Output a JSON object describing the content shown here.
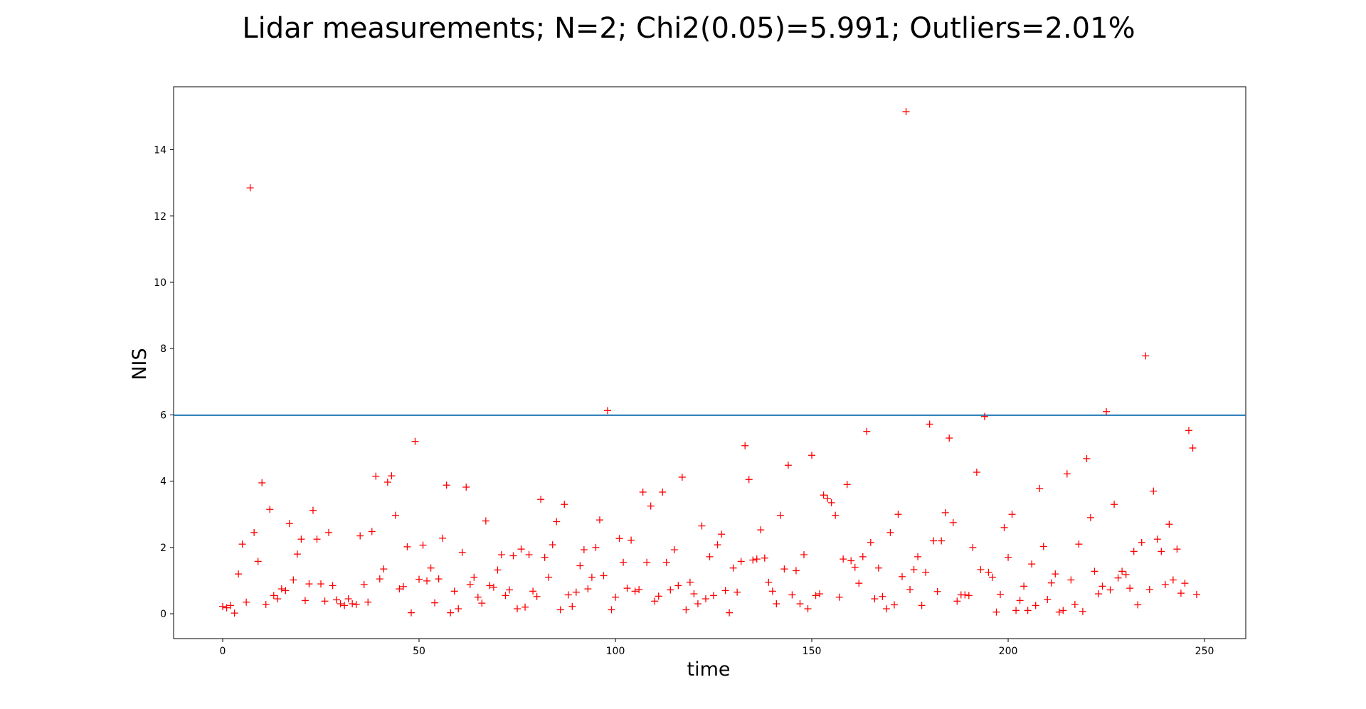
{
  "chart_data": {
    "type": "scatter",
    "title": "Lidar measurements; N=2; Chi2(0.05)=5.991; Outliers=2.01%",
    "xlabel": "time",
    "ylabel": "NIS",
    "xlim": [
      -12.5,
      260.5
    ],
    "ylim": [
      -0.75,
      15.9
    ],
    "xticks": [
      0,
      50,
      100,
      150,
      200,
      250
    ],
    "yticks": [
      0,
      2,
      4,
      6,
      8,
      10,
      12,
      14
    ],
    "grid": false,
    "legend": "none",
    "marker": "+",
    "marker_color": "#ff0000",
    "threshold": {
      "value": 5.991,
      "color": "#1f77b4"
    },
    "series": [
      {
        "x": [
          0,
          1,
          2,
          3,
          4,
          5,
          6,
          7,
          8,
          9,
          10,
          11,
          12,
          13,
          14,
          15,
          16,
          17,
          18,
          19,
          20,
          21,
          22,
          23,
          24,
          25,
          26,
          27,
          28,
          29,
          30,
          31,
          32,
          33,
          34,
          35,
          36,
          37,
          38,
          39,
          40,
          41,
          42,
          43,
          44,
          45,
          46,
          47,
          48,
          49,
          50,
          51,
          52,
          53,
          54,
          55,
          56,
          57,
          58,
          59,
          60,
          61,
          62,
          63,
          64,
          65,
          66,
          67,
          68,
          69,
          70,
          71,
          72,
          73,
          74,
          75,
          76,
          77,
          78,
          79,
          80,
          81,
          82,
          83,
          84,
          85,
          86,
          87,
          88,
          89,
          90,
          91,
          92,
          93,
          94,
          95,
          96,
          97,
          98,
          99,
          100,
          101,
          102,
          103,
          104,
          105,
          106,
          107,
          108,
          109,
          110,
          111,
          112,
          113,
          114,
          115,
          116,
          117,
          118,
          119,
          120,
          121,
          122,
          123,
          124,
          125,
          126,
          127,
          128,
          129,
          130,
          131,
          132,
          133,
          134,
          135,
          136,
          137,
          138,
          139,
          140,
          141,
          142,
          143,
          144,
          145,
          146,
          147,
          148,
          149,
          150,
          151,
          152,
          153,
          154,
          155,
          156,
          157,
          158,
          159,
          160,
          161,
          162,
          163,
          164,
          165,
          166,
          167,
          168,
          169,
          170,
          171,
          172,
          173,
          174,
          175,
          176,
          177,
          178,
          179,
          180,
          181,
          182,
          183,
          184,
          185,
          186,
          187,
          188,
          189,
          190,
          191,
          192,
          193,
          194,
          195,
          196,
          197,
          198,
          199,
          200,
          201,
          202,
          203,
          204,
          205,
          206,
          207,
          208,
          209,
          210,
          211,
          212,
          213,
          214,
          215,
          216,
          217,
          218,
          219,
          220,
          221,
          222,
          223,
          224,
          225,
          226,
          227,
          228,
          229,
          230,
          231,
          232,
          233,
          234,
          235,
          236,
          237,
          238,
          239,
          240,
          241,
          242,
          243,
          244,
          245,
          246,
          247,
          248
        ],
        "y": [
          0.22,
          0.18,
          0.25,
          0.02,
          1.2,
          2.1,
          0.35,
          12.85,
          2.45,
          1.58,
          3.95,
          0.28,
          3.15,
          0.55,
          0.45,
          0.75,
          0.7,
          2.72,
          1.02,
          1.8,
          2.25,
          0.4,
          0.9,
          3.12,
          2.25,
          0.9,
          0.38,
          2.45,
          0.85,
          0.42,
          0.3,
          0.25,
          0.45,
          0.3,
          0.28,
          2.35,
          0.88,
          0.35,
          2.48,
          4.15,
          1.05,
          1.35,
          3.97,
          4.16,
          2.97,
          0.75,
          0.82,
          2.02,
          0.03,
          5.2,
          1.04,
          2.07,
          0.99,
          1.38,
          0.33,
          1.05,
          2.28,
          3.88,
          0.03,
          0.68,
          0.15,
          1.85,
          3.82,
          0.88,
          1.1,
          0.5,
          0.32,
          2.8,
          0.85,
          0.8,
          1.32,
          1.78,
          0.55,
          0.72,
          1.75,
          0.15,
          1.95,
          0.2,
          1.78,
          0.68,
          0.52,
          3.45,
          1.7,
          1.1,
          2.08,
          2.78,
          0.12,
          3.3,
          0.57,
          0.22,
          0.65,
          1.45,
          1.93,
          0.75,
          1.1,
          2.0,
          2.83,
          1.15,
          6.13,
          0.12,
          0.5,
          2.27,
          1.55,
          0.77,
          2.22,
          0.68,
          0.73,
          3.67,
          1.55,
          3.25,
          0.38,
          0.53,
          3.67,
          1.55,
          0.72,
          1.93,
          0.85,
          4.12,
          0.12,
          0.95,
          0.6,
          0.3,
          2.65,
          0.45,
          1.72,
          0.55,
          2.08,
          2.4,
          0.7,
          0.03,
          1.38,
          0.65,
          1.58,
          5.07,
          4.05,
          1.62,
          1.65,
          2.53,
          1.68,
          0.95,
          0.68,
          0.3,
          2.97,
          1.35,
          4.48,
          0.57,
          1.3,
          0.3,
          1.78,
          0.15,
          4.78,
          0.55,
          0.6,
          3.58,
          3.48,
          3.35,
          2.97,
          0.5,
          1.65,
          3.9,
          1.6,
          1.4,
          0.92,
          1.72,
          5.5,
          2.15,
          0.45,
          1.38,
          0.52,
          0.15,
          2.45,
          0.27,
          3.0,
          1.12,
          15.15,
          0.73,
          1.33,
          1.72,
          0.25,
          1.25,
          5.72,
          2.2,
          0.67,
          2.2,
          3.05,
          5.3,
          2.75,
          0.38,
          0.57,
          0.57,
          0.55,
          2.0,
          4.27,
          1.33,
          5.95,
          1.25,
          1.1,
          0.05,
          0.58,
          2.6,
          1.7,
          3.0,
          0.1,
          0.4,
          0.83,
          0.1,
          1.5,
          0.25,
          3.78,
          2.03,
          0.43,
          0.93,
          1.2,
          0.05,
          0.1,
          4.22,
          1.02,
          0.28,
          2.1,
          0.07,
          4.68,
          2.9,
          1.28,
          0.6,
          0.83,
          6.1,
          0.72,
          3.3,
          1.08,
          1.28,
          1.18,
          0.77,
          1.88,
          0.27,
          2.15,
          7.78,
          0.73,
          3.7,
          2.25,
          1.88,
          0.88,
          2.7,
          1.02,
          1.95,
          0.62,
          0.92,
          5.53,
          5.0,
          0.58
        ]
      }
    ]
  }
}
